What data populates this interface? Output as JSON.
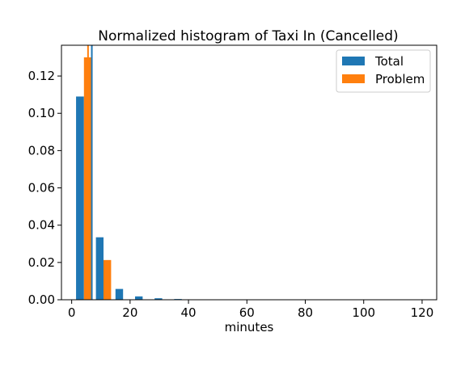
{
  "chart_data": {
    "type": "bar",
    "title": "Normalized histogram of Taxi In (Cancelled)",
    "xlabel": "minutes",
    "ylabel": "",
    "xlim": [
      -3.5,
      125
    ],
    "ylim": [
      0,
      0.1365
    ],
    "xticks": [
      0,
      20,
      40,
      60,
      80,
      100,
      120
    ],
    "yticks": [
      0.0,
      0.02,
      0.04,
      0.06,
      0.08,
      0.1,
      0.12
    ],
    "xtick_labels": [
      "0",
      "20",
      "40",
      "60",
      "80",
      "100",
      "120"
    ],
    "ytick_labels": [
      "0.00",
      "0.02",
      "0.04",
      "0.06",
      "0.08",
      "0.10",
      "0.12"
    ],
    "legend_position": "top-right",
    "series": [
      {
        "name": "Total",
        "color": "#1f77b4",
        "bins": [
          {
            "x0": 1.5,
            "x1": 4.2,
            "value": 0.109
          },
          {
            "x0": 8.3,
            "x1": 10.9,
            "value": 0.0335
          },
          {
            "x0": 15.0,
            "x1": 17.6,
            "value": 0.0058
          },
          {
            "x0": 21.7,
            "x1": 24.3,
            "value": 0.0018
          },
          {
            "x0": 28.4,
            "x1": 31.0,
            "value": 0.0008
          },
          {
            "x0": 35.1,
            "x1": 37.7,
            "value": 0.0004
          }
        ],
        "vline": 6.9
      },
      {
        "name": "Problem",
        "color": "#ff7f0e",
        "bins": [
          {
            "x0": 4.2,
            "x1": 6.9,
            "value": 0.13
          },
          {
            "x0": 10.9,
            "x1": 13.5,
            "value": 0.0213
          }
        ],
        "vline": 5.6
      }
    ]
  }
}
